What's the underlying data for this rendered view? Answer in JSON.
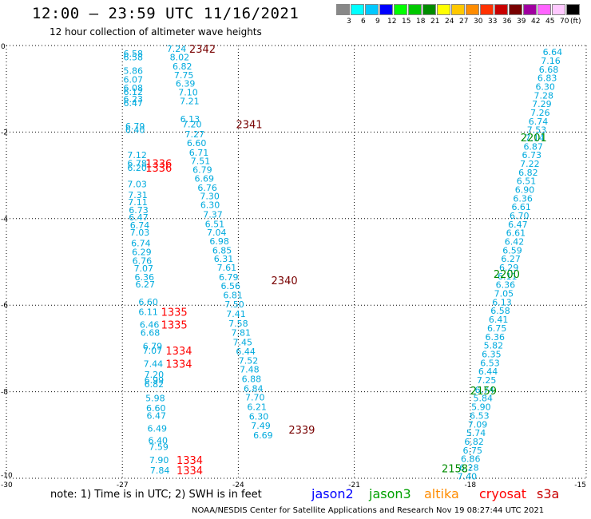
{
  "title": "12:00 — 23:59 UTC 11/16/2021",
  "subtitle": "12 hour collection of altimeter wave heights",
  "colorbar": {
    "labels": [
      "3",
      "6",
      "9",
      "12",
      "15",
      "18",
      "21",
      "24",
      "27",
      "30",
      "33",
      "36",
      "39",
      "42",
      "45",
      "70"
    ],
    "unit": "(ft)",
    "colors": [
      "#888888",
      "#00ffff",
      "#00c8ff",
      "#0000ff",
      "#00ff00",
      "#00c800",
      "#008c00",
      "#ffff00",
      "#ffc800",
      "#ff8c00",
      "#ff3200",
      "#c80000",
      "#780000",
      "#a000a0",
      "#ff64ff",
      "#ffc8ff",
      "#000000"
    ]
  },
  "note": "note:  1) Time is in UTC;  2) SWH is in feet",
  "legend": [
    {
      "name": "jason2",
      "color": "#0000ff"
    },
    {
      "name": "jason3",
      "color": "#00a000"
    },
    {
      "name": "altika",
      "color": "#ff8c00"
    },
    {
      "name": "cryosat",
      "color": "#ff0000"
    },
    {
      "name": "s3a",
      "color": "#c80000"
    }
  ],
  "footer": "NOAA/NESDIS Center for Satellite Applications and Research     Nov 19 08:27:44 UTC 2021",
  "map": {
    "lon_ticks": [
      "-30",
      "-27",
      "-24",
      "-21",
      "-18",
      "-15"
    ],
    "lat_ticks": [
      "0",
      "-2",
      "-4",
      "-6",
      "-8",
      "-10"
    ],
    "value_color": "#00aadd"
  },
  "chart_data": {
    "type": "scatter",
    "xlim": [
      -30,
      -15
    ],
    "ylim": [
      -10,
      0
    ],
    "grid": true,
    "time_labels": [
      {
        "text": "2342",
        "lon": -25.27,
        "lat": -0.07,
        "color": "#780000"
      },
      {
        "text": "2341",
        "lon": -24.06,
        "lat": -1.82,
        "color": "#780000"
      },
      {
        "text": "2340",
        "lon": -23.15,
        "lat": -5.42,
        "color": "#780000"
      },
      {
        "text": "2339",
        "lon": -22.7,
        "lat": -8.87,
        "color": "#780000"
      },
      {
        "text": "1336",
        "lon": -26.4,
        "lat": -2.72,
        "color": "#ff0000"
      },
      {
        "text": "1336",
        "lon": -26.4,
        "lat": -2.82,
        "color": "#ff0000"
      },
      {
        "text": "1335",
        "lon": -26.0,
        "lat": -6.15,
        "color": "#ff0000"
      },
      {
        "text": "1335",
        "lon": -26.0,
        "lat": -6.45,
        "color": "#ff0000"
      },
      {
        "text": "1334",
        "lon": -25.88,
        "lat": -7.05,
        "color": "#ff0000"
      },
      {
        "text": "1334",
        "lon": -25.88,
        "lat": -7.35,
        "color": "#ff0000"
      },
      {
        "text": "1334",
        "lon": -25.6,
        "lat": -9.58,
        "color": "#ff0000"
      },
      {
        "text": "1334",
        "lon": -25.6,
        "lat": -9.82,
        "color": "#ff0000"
      },
      {
        "text": "2201",
        "lon": -16.7,
        "lat": -2.12,
        "color": "#008c00"
      },
      {
        "text": "2200",
        "lon": -17.4,
        "lat": -5.28,
        "color": "#008c00"
      },
      {
        "text": "2159",
        "lon": -18.0,
        "lat": -7.97,
        "color": "#008c00"
      },
      {
        "text": "2158",
        "lon": -18.74,
        "lat": -9.77,
        "color": "#008c00"
      }
    ],
    "tracks": [
      {
        "name": "s3a-track",
        "points": [
          {
            "v": "7.24",
            "lon": -25.6,
            "lat": -0.07
          },
          {
            "v": "8.02",
            "lon": -25.52,
            "lat": -0.27
          },
          {
            "v": "6.82",
            "lon": -25.45,
            "lat": -0.48
          },
          {
            "v": "7.75",
            "lon": -25.41,
            "lat": -0.68
          },
          {
            "v": "6.39",
            "lon": -25.37,
            "lat": -0.88
          },
          {
            "v": "7.10",
            "lon": -25.3,
            "lat": -1.08
          },
          {
            "v": "7.21",
            "lon": -25.26,
            "lat": -1.28
          },
          {
            "v": "6.13",
            "lon": -25.25,
            "lat": -1.7
          },
          {
            "v": "7.20",
            "lon": -25.2,
            "lat": -1.82
          },
          {
            "v": "7.27",
            "lon": -25.13,
            "lat": -2.05
          },
          {
            "v": "6.60",
            "lon": -25.08,
            "lat": -2.25
          },
          {
            "v": "6.71",
            "lon": -25.02,
            "lat": -2.47
          },
          {
            "v": "7.51",
            "lon": -24.98,
            "lat": -2.67
          },
          {
            "v": "6.79",
            "lon": -24.93,
            "lat": -2.87
          },
          {
            "v": "6.69",
            "lon": -24.88,
            "lat": -3.07
          },
          {
            "v": "6.76",
            "lon": -24.8,
            "lat": -3.28
          },
          {
            "v": "7.30",
            "lon": -24.74,
            "lat": -3.48
          },
          {
            "v": "6.30",
            "lon": -24.73,
            "lat": -3.68
          },
          {
            "v": "7.37",
            "lon": -24.66,
            "lat": -3.9
          },
          {
            "v": "6.51",
            "lon": -24.61,
            "lat": -4.12
          },
          {
            "v": "7.04",
            "lon": -24.56,
            "lat": -4.32
          },
          {
            "v": "6.98",
            "lon": -24.49,
            "lat": -4.52
          },
          {
            "v": "6.85",
            "lon": -24.42,
            "lat": -4.73
          },
          {
            "v": "6.31",
            "lon": -24.38,
            "lat": -4.93
          },
          {
            "v": "7.61",
            "lon": -24.3,
            "lat": -5.13
          },
          {
            "v": "6.79",
            "lon": -24.25,
            "lat": -5.35
          },
          {
            "v": "6.56",
            "lon": -24.2,
            "lat": -5.55
          },
          {
            "v": "6.81",
            "lon": -24.14,
            "lat": -5.77
          },
          {
            "v": "7.50",
            "lon": -24.1,
            "lat": -5.98
          },
          {
            "v": "7.41",
            "lon": -24.06,
            "lat": -6.2
          },
          {
            "v": "7.58",
            "lon": -24.0,
            "lat": -6.42
          },
          {
            "v": "7.81",
            "lon": -23.93,
            "lat": -6.63
          },
          {
            "v": "7.45",
            "lon": -23.89,
            "lat": -6.85
          },
          {
            "v": "6.44",
            "lon": -23.81,
            "lat": -7.07
          },
          {
            "v": "7.52",
            "lon": -23.74,
            "lat": -7.28
          },
          {
            "v": "7.48",
            "lon": -23.71,
            "lat": -7.48
          },
          {
            "v": "6.88",
            "lon": -23.66,
            "lat": -7.7
          },
          {
            "v": "6.84",
            "lon": -23.61,
            "lat": -7.92
          },
          {
            "v": "7.70",
            "lon": -23.57,
            "lat": -8.13
          },
          {
            "v": "6.21",
            "lon": -23.52,
            "lat": -8.35
          },
          {
            "v": "6.30",
            "lon": -23.47,
            "lat": -8.57
          },
          {
            "v": "7.49",
            "lon": -23.42,
            "lat": -8.78
          },
          {
            "v": "6.69",
            "lon": -23.36,
            "lat": -9.0
          }
        ]
      },
      {
        "name": "cryosat-track",
        "points": [
          {
            "v": "6.58",
            "lon": -26.72,
            "lat": -0.18
          },
          {
            "v": "6.58",
            "lon": -26.72,
            "lat": -0.27
          },
          {
            "v": "5.86",
            "lon": -26.72,
            "lat": -0.58
          },
          {
            "v": "6.07",
            "lon": -26.72,
            "lat": -0.78
          },
          {
            "v": "6.08",
            "lon": -26.72,
            "lat": -0.98
          },
          {
            "v": "6.12",
            "lon": -26.72,
            "lat": -1.07
          },
          {
            "v": "6.23",
            "lon": -26.72,
            "lat": -1.24
          },
          {
            "v": "6.47",
            "lon": -26.72,
            "lat": -1.33
          },
          {
            "v": "6.79",
            "lon": -26.67,
            "lat": -1.86
          },
          {
            "v": "6.40",
            "lon": -26.67,
            "lat": -1.95
          },
          {
            "v": "7.12",
            "lon": -26.62,
            "lat": -2.53
          },
          {
            "v": "6.78",
            "lon": -26.62,
            "lat": -2.72
          },
          {
            "v": "6.20",
            "lon": -26.62,
            "lat": -2.82
          },
          {
            "v": "7.03",
            "lon": -26.62,
            "lat": -3.2
          },
          {
            "v": "7.31",
            "lon": -26.6,
            "lat": -3.45
          },
          {
            "v": "7.11",
            "lon": -26.6,
            "lat": -3.62
          },
          {
            "v": "6.73",
            "lon": -26.58,
            "lat": -3.8
          },
          {
            "v": "6.47",
            "lon": -26.58,
            "lat": -3.97
          },
          {
            "v": "6.74",
            "lon": -26.55,
            "lat": -4.15
          },
          {
            "v": "7.03",
            "lon": -26.55,
            "lat": -4.32
          },
          {
            "v": "6.74",
            "lon": -26.52,
            "lat": -4.57
          },
          {
            "v": "6.29",
            "lon": -26.5,
            "lat": -4.77
          },
          {
            "v": "6.76",
            "lon": -26.49,
            "lat": -4.97
          },
          {
            "v": "7.07",
            "lon": -26.45,
            "lat": -5.15
          },
          {
            "v": "6.36",
            "lon": -26.43,
            "lat": -5.35
          },
          {
            "v": "6.27",
            "lon": -26.41,
            "lat": -5.52
          },
          {
            "v": "6.60",
            "lon": -26.33,
            "lat": -5.92
          },
          {
            "v": "6.11",
            "lon": -26.33,
            "lat": -6.15
          },
          {
            "v": "6.46",
            "lon": -26.3,
            "lat": -6.45
          },
          {
            "v": "6.68",
            "lon": -26.28,
            "lat": -6.63
          },
          {
            "v": "6.79",
            "lon": -26.22,
            "lat": -6.95
          },
          {
            "v": "7.07",
            "lon": -26.22,
            "lat": -7.05
          },
          {
            "v": "7.44",
            "lon": -26.2,
            "lat": -7.35
          },
          {
            "v": "7.20",
            "lon": -26.18,
            "lat": -7.6
          },
          {
            "v": "6.99",
            "lon": -26.18,
            "lat": -7.73
          },
          {
            "v": "6.82",
            "lon": -26.18,
            "lat": -7.82
          },
          {
            "v": "5.98",
            "lon": -26.15,
            "lat": -8.15
          },
          {
            "v": "6.60",
            "lon": -26.13,
            "lat": -8.38
          },
          {
            "v": "6.47",
            "lon": -26.12,
            "lat": -8.55
          },
          {
            "v": "6.49",
            "lon": -26.1,
            "lat": -8.85
          },
          {
            "v": "6.40",
            "lon": -26.08,
            "lat": -9.12
          },
          {
            "v": "7.59",
            "lon": -26.06,
            "lat": -9.27
          },
          {
            "v": "7.90",
            "lon": -26.05,
            "lat": -9.58
          },
          {
            "v": "7.84",
            "lon": -26.03,
            "lat": -9.82
          }
        ]
      },
      {
        "name": "jason3-track",
        "points": [
          {
            "v": "6.64",
            "lon": -15.87,
            "lat": -0.15
          },
          {
            "v": "7.16",
            "lon": -15.92,
            "lat": -0.35
          },
          {
            "v": "6.68",
            "lon": -15.97,
            "lat": -0.55
          },
          {
            "v": "6.83",
            "lon": -16.01,
            "lat": -0.75
          },
          {
            "v": "6.30",
            "lon": -16.06,
            "lat": -0.95
          },
          {
            "v": "7.28",
            "lon": -16.1,
            "lat": -1.15
          },
          {
            "v": "7.29",
            "lon": -16.15,
            "lat": -1.35
          },
          {
            "v": "7.26",
            "lon": -16.19,
            "lat": -1.55
          },
          {
            "v": "6.74",
            "lon": -16.24,
            "lat": -1.75
          },
          {
            "v": "7.53",
            "lon": -16.28,
            "lat": -1.95
          },
          {
            "v": "7.14",
            "lon": -16.33,
            "lat": -2.13
          },
          {
            "v": "6.87",
            "lon": -16.37,
            "lat": -2.33
          },
          {
            "v": "6.73",
            "lon": -16.41,
            "lat": -2.53
          },
          {
            "v": "7.22",
            "lon": -16.46,
            "lat": -2.73
          },
          {
            "v": "6.82",
            "lon": -16.5,
            "lat": -2.93
          },
          {
            "v": "6.51",
            "lon": -16.55,
            "lat": -3.13
          },
          {
            "v": "6.90",
            "lon": -16.59,
            "lat": -3.33
          },
          {
            "v": "6.36",
            "lon": -16.64,
            "lat": -3.53
          },
          {
            "v": "6.61",
            "lon": -16.68,
            "lat": -3.73
          },
          {
            "v": "6.70",
            "lon": -16.73,
            "lat": -3.93
          },
          {
            "v": "6.47",
            "lon": -16.77,
            "lat": -4.13
          },
          {
            "v": "6.61",
            "lon": -16.82,
            "lat": -4.33
          },
          {
            "v": "6.42",
            "lon": -16.86,
            "lat": -4.53
          },
          {
            "v": "6.59",
            "lon": -16.91,
            "lat": -4.73
          },
          {
            "v": "6.27",
            "lon": -16.95,
            "lat": -4.93
          },
          {
            "v": "6.29",
            "lon": -17.0,
            "lat": -5.13
          },
          {
            "v": "6.11",
            "lon": -17.04,
            "lat": -5.33
          },
          {
            "v": "6.36",
            "lon": -17.09,
            "lat": -5.53
          },
          {
            "v": "7.05",
            "lon": -17.13,
            "lat": -5.73
          },
          {
            "v": "6.13",
            "lon": -17.18,
            "lat": -5.93
          },
          {
            "v": "6.58",
            "lon": -17.22,
            "lat": -6.13
          },
          {
            "v": "6.41",
            "lon": -17.27,
            "lat": -6.33
          },
          {
            "v": "6.75",
            "lon": -17.31,
            "lat": -6.53
          },
          {
            "v": "6.36",
            "lon": -17.36,
            "lat": -6.73
          },
          {
            "v": "5.82",
            "lon": -17.4,
            "lat": -6.93
          },
          {
            "v": "6.35",
            "lon": -17.45,
            "lat": -7.13
          },
          {
            "v": "6.53",
            "lon": -17.49,
            "lat": -7.33
          },
          {
            "v": "6.44",
            "lon": -17.54,
            "lat": -7.53
          },
          {
            "v": "7.25",
            "lon": -17.58,
            "lat": -7.73
          },
          {
            "v": "6.74",
            "lon": -17.63,
            "lat": -7.95
          },
          {
            "v": "5.84",
            "lon": -17.67,
            "lat": -8.15
          },
          {
            "v": "5.90",
            "lon": -17.72,
            "lat": -8.35
          },
          {
            "v": "6.53",
            "lon": -17.76,
            "lat": -8.55
          },
          {
            "v": "7.09",
            "lon": -17.81,
            "lat": -8.75
          },
          {
            "v": "5.74",
            "lon": -17.85,
            "lat": -8.95
          },
          {
            "v": "6.82",
            "lon": -17.9,
            "lat": -9.15
          },
          {
            "v": "6.75",
            "lon": -17.94,
            "lat": -9.35
          },
          {
            "v": "6.86",
            "lon": -17.99,
            "lat": -9.55
          },
          {
            "v": "6.28",
            "lon": -18.03,
            "lat": -9.75
          },
          {
            "v": "7.40",
            "lon": -18.08,
            "lat": -9.95
          }
        ]
      }
    ]
  }
}
